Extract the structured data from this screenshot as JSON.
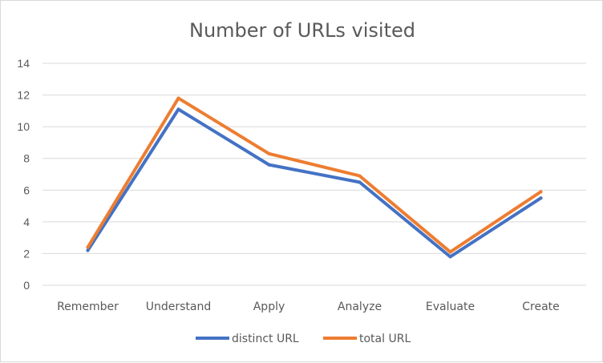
{
  "chart_data": {
    "type": "line",
    "title": "Number of URLs visited",
    "categories": [
      "Remember",
      "Understand",
      "Apply",
      "Analyze",
      "Evaluate",
      "Create"
    ],
    "series": [
      {
        "name": "distinct URL",
        "color": "#4472C4",
        "values": [
          2.2,
          11.1,
          7.6,
          6.5,
          1.8,
          5.5
        ]
      },
      {
        "name": "total URL",
        "color": "#ED7D31",
        "values": [
          2.4,
          11.8,
          8.3,
          6.9,
          2.1,
          5.9
        ]
      }
    ],
    "ylim": [
      0,
      14
    ],
    "yticks": [
      "0",
      "2",
      "4",
      "6",
      "8",
      "10",
      "12",
      "14"
    ],
    "grid": true,
    "legend_position": "bottom"
  }
}
